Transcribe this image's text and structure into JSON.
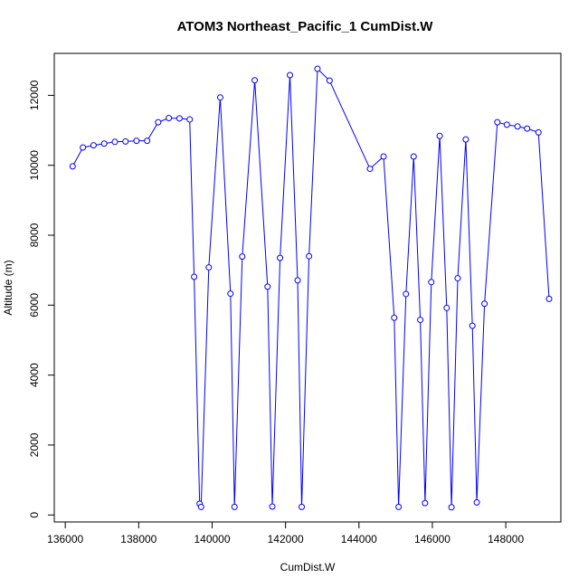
{
  "chart_data": {
    "type": "line",
    "title": "ATOM3 Northeast_Pacific_1 CumDist.W",
    "xlabel": "CumDist.W",
    "ylabel": "Altitude (m)",
    "xlim": [
      135700,
      149500
    ],
    "ylim": [
      -200,
      13200
    ],
    "xticks": [
      136000,
      138000,
      140000,
      142000,
      144000,
      146000,
      148000
    ],
    "yticks": [
      0,
      2000,
      4000,
      6000,
      8000,
      10000,
      12000
    ],
    "grid": false,
    "series": [
      {
        "color": "#0000ff",
        "marker": "open-circle",
        "x": [
          136200,
          136480,
          136770,
          137060,
          137350,
          137640,
          137940,
          138230,
          138530,
          138820,
          139110,
          139390,
          139510,
          139660,
          139700,
          139910,
          140220,
          140500,
          140610,
          140820,
          141160,
          141510,
          141640,
          141850,
          142120,
          142330,
          142440,
          142640,
          142870,
          143200,
          144300,
          144670,
          144960,
          145080,
          145280,
          145490,
          145670,
          145800,
          145970,
          146200,
          146390,
          146520,
          146690,
          146910,
          147090,
          147210,
          147420,
          147770,
          148030,
          148320,
          148580,
          148890,
          149180
        ],
        "y": [
          9970,
          10510,
          10570,
          10620,
          10670,
          10680,
          10700,
          10700,
          11230,
          11350,
          11340,
          11310,
          6810,
          320,
          230,
          7080,
          11940,
          6330,
          230,
          7390,
          12430,
          6530,
          240,
          7350,
          12580,
          6710,
          230,
          7400,
          12760,
          12420,
          9900,
          10250,
          5640,
          230,
          6320,
          10250,
          5580,
          340,
          6660,
          10840,
          5920,
          220,
          6770,
          10740,
          5410,
          360,
          6040,
          11230,
          11160,
          11110,
          11050,
          10940,
          6180
        ]
      }
    ]
  }
}
